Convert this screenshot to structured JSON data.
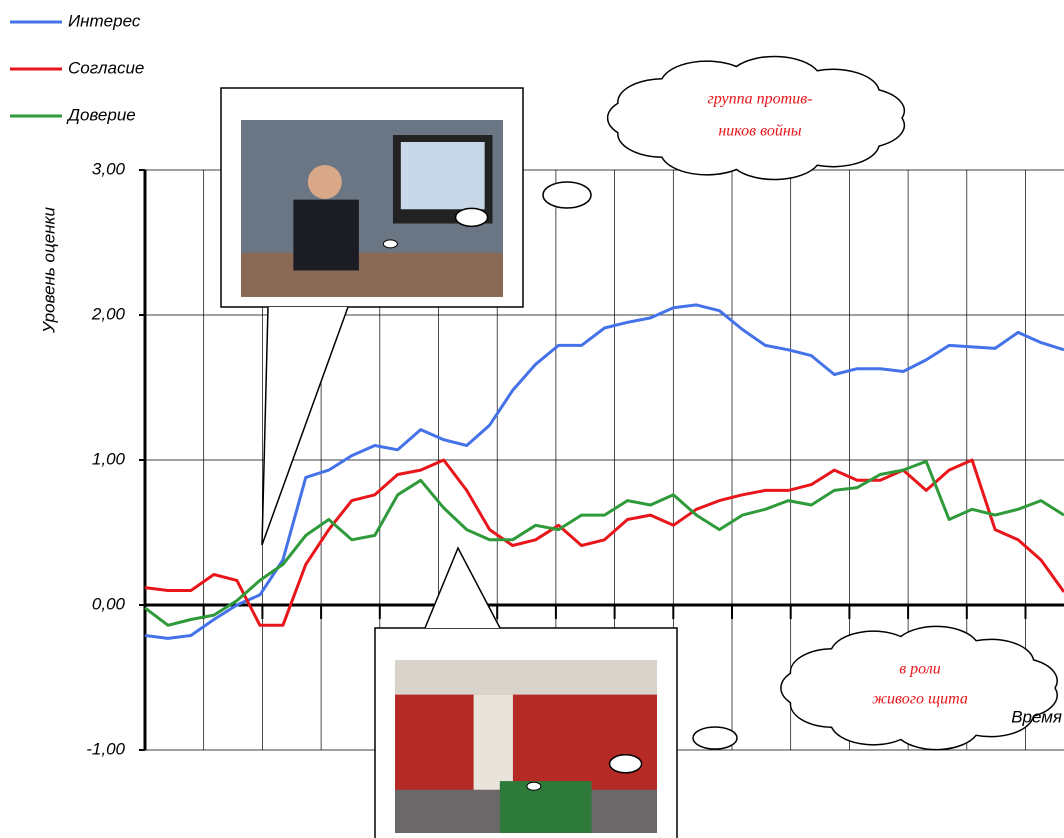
{
  "chart_data": {
    "type": "line",
    "y_label": "Уровень оценки",
    "x_label": "Время",
    "ylim": [
      -1,
      3
    ],
    "yticks": [
      {
        "value": -1,
        "label": "-1,00"
      },
      {
        "value": 0,
        "label": "0,00"
      },
      {
        "value": 1,
        "label": "1,00"
      },
      {
        "value": 2,
        "label": "2,00"
      },
      {
        "value": 3,
        "label": "3,00"
      }
    ],
    "grid": true,
    "series": [
      {
        "name": "Интерес",
        "color": "#4472e8",
        "values": [
          -0.21,
          -0.23,
          -0.21,
          -0.1,
          0.0,
          0.07,
          0.31,
          0.88,
          0.93,
          1.03,
          1.1,
          1.07,
          1.21,
          1.14,
          1.1,
          1.24,
          1.48,
          1.66,
          1.79,
          1.79,
          1.91,
          1.95,
          1.98,
          2.05,
          2.07,
          2.03,
          1.9,
          1.79,
          1.76,
          1.72,
          1.59,
          1.63,
          1.63,
          1.61,
          1.69,
          1.79,
          1.78,
          1.77,
          1.88,
          1.81,
          1.76
        ]
      },
      {
        "name": "Согласие",
        "color": "#e8161b",
        "values": [
          0.12,
          0.1,
          0.1,
          0.21,
          0.17,
          -0.14,
          -0.14,
          0.28,
          0.52,
          0.72,
          0.76,
          0.9,
          0.93,
          1.0,
          0.79,
          0.52,
          0.41,
          0.45,
          0.55,
          0.41,
          0.45,
          0.59,
          0.62,
          0.55,
          0.66,
          0.72,
          0.76,
          0.79,
          0.79,
          0.83,
          0.93,
          0.86,
          0.86,
          0.93,
          0.79,
          0.93,
          1.0,
          0.52,
          0.45,
          0.31,
          0.09
        ]
      },
      {
        "name": "Доверие",
        "color": "#2e9a3a",
        "values": [
          -0.02,
          -0.14,
          -0.1,
          -0.07,
          0.03,
          0.17,
          0.28,
          0.48,
          0.59,
          0.45,
          0.48,
          0.76,
          0.86,
          0.67,
          0.52,
          0.45,
          0.45,
          0.55,
          0.52,
          0.62,
          0.62,
          0.72,
          0.69,
          0.76,
          0.62,
          0.52,
          0.62,
          0.66,
          0.72,
          0.69,
          0.79,
          0.81,
          0.9,
          0.93,
          0.99,
          0.59,
          0.66,
          0.62,
          0.66,
          0.72,
          0.62
        ]
      }
    ],
    "annotations": [
      "группа против-",
      "ников войны",
      "в роли",
      "живого щита"
    ]
  }
}
